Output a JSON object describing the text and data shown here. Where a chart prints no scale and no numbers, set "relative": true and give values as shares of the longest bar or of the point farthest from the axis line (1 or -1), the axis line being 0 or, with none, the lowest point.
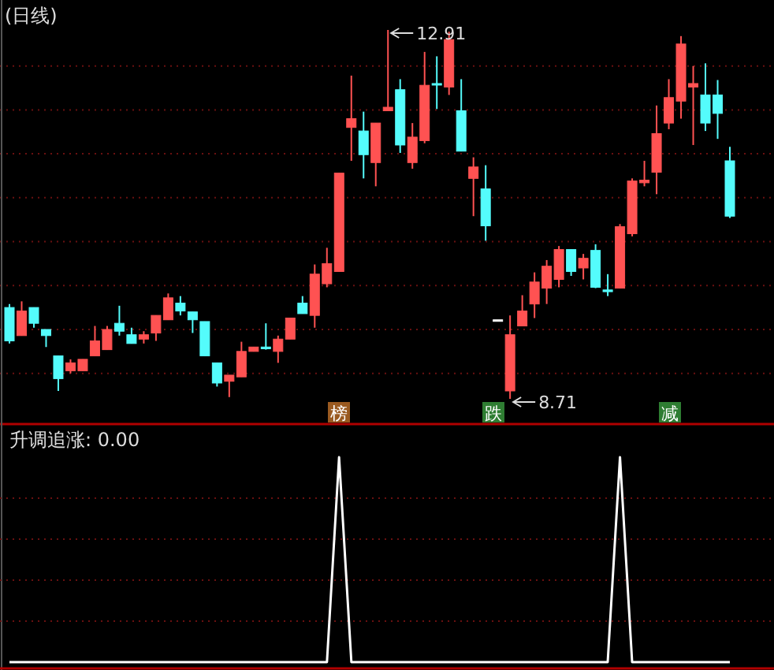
{
  "chart_data": [
    {
      "type": "candlestick",
      "title": "(日线)",
      "grid": true,
      "categories": [
        null,
        null,
        null,
        null,
        null,
        null,
        null,
        null,
        null,
        null,
        null,
        null,
        null,
        null,
        null,
        null,
        null,
        null,
        null,
        null,
        null,
        null,
        null,
        null,
        null,
        null,
        null,
        null,
        null,
        null,
        null,
        null,
        null,
        null,
        null,
        null,
        null,
        null,
        null,
        null,
        null,
        null,
        null,
        null,
        null,
        null,
        null,
        null,
        null,
        null,
        null,
        null,
        null,
        null,
        null,
        null,
        null,
        null,
        null,
        null
      ],
      "ohlc": [
        [
          9.75,
          9.79,
          9.34,
          9.37
        ],
        [
          9.43,
          9.82,
          9.43,
          9.71
        ],
        [
          9.75,
          9.75,
          9.52,
          9.57
        ],
        [
          9.5,
          9.5,
          9.3,
          9.43
        ],
        [
          9.2,
          9.2,
          8.8,
          8.94
        ],
        [
          9.03,
          9.16,
          9.0,
          9.12
        ],
        [
          9.03,
          9.16,
          9.03,
          9.16
        ],
        [
          9.2,
          9.54,
          9.2,
          9.37
        ],
        [
          9.27,
          9.54,
          9.27,
          9.5
        ],
        [
          9.57,
          9.77,
          9.43,
          9.48
        ],
        [
          9.44,
          9.52,
          9.34,
          9.34
        ],
        [
          9.39,
          9.48,
          9.34,
          9.44
        ],
        [
          9.46,
          9.66,
          9.37,
          9.66
        ],
        [
          9.61,
          9.91,
          9.61,
          9.86
        ],
        [
          9.8,
          9.88,
          9.66,
          9.71
        ],
        [
          9.7,
          9.7,
          9.46,
          9.61
        ],
        [
          9.59,
          9.59,
          9.2,
          9.2
        ],
        [
          9.12,
          9.12,
          8.85,
          8.89
        ],
        [
          8.91,
          8.98,
          8.73,
          8.98
        ],
        [
          8.96,
          9.36,
          8.96,
          9.25
        ],
        [
          9.25,
          9.3,
          9.25,
          9.3
        ],
        [
          9.3,
          9.57,
          9.27,
          9.28
        ],
        [
          9.25,
          9.43,
          9.12,
          9.39
        ],
        [
          9.39,
          9.63,
          9.39,
          9.63
        ],
        [
          9.8,
          9.88,
          9.68,
          9.68
        ],
        [
          9.66,
          10.24,
          9.52,
          10.13
        ],
        [
          10.02,
          10.43,
          9.98,
          10.25
        ],
        [
          10.16,
          11.28,
          10.16,
          11.28
        ],
        [
          11.8,
          12.39,
          11.42,
          11.9
        ],
        [
          11.76,
          11.98,
          11.22,
          11.49
        ],
        [
          11.4,
          11.85,
          11.13,
          11.85
        ],
        [
          11.99,
          12.91,
          11.99,
          12.03
        ],
        [
          12.23,
          12.35,
          11.51,
          11.6
        ],
        [
          11.4,
          11.85,
          11.33,
          11.69
        ],
        [
          11.65,
          12.66,
          11.62,
          12.28
        ],
        [
          12.3,
          12.61,
          12.01,
          12.3
        ],
        [
          12.26,
          12.89,
          12.17,
          12.8
        ],
        [
          11.99,
          12.35,
          11.53,
          11.53
        ],
        [
          11.22,
          11.46,
          10.79,
          11.35
        ],
        [
          11.1,
          11.37,
          10.51,
          10.68
        ],
        [
          9.61,
          9.61,
          9.61,
          9.61
        ],
        [
          8.8,
          9.66,
          8.71,
          9.44
        ],
        [
          9.54,
          9.89,
          9.54,
          9.71
        ],
        [
          9.79,
          10.15,
          9.63,
          10.04
        ],
        [
          9.97,
          10.29,
          9.79,
          10.22
        ],
        [
          10.07,
          10.45,
          9.98,
          10.41
        ],
        [
          10.41,
          10.41,
          10.11,
          10.16
        ],
        [
          10.2,
          10.36,
          10.07,
          10.31
        ],
        [
          10.4,
          10.47,
          9.97,
          9.98
        ],
        [
          9.95,
          10.13,
          9.88,
          9.93
        ],
        [
          9.97,
          10.7,
          9.97,
          10.67
        ],
        [
          10.59,
          11.22,
          10.56,
          11.19
        ],
        [
          11.17,
          11.42,
          11.13,
          11.2
        ],
        [
          11.29,
          12.05,
          11.04,
          11.73
        ],
        [
          11.85,
          12.35,
          11.78,
          12.14
        ],
        [
          12.1,
          12.84,
          11.9,
          12.75
        ],
        [
          12.26,
          12.5,
          11.6,
          12.3
        ],
        [
          12.17,
          12.53,
          11.76,
          11.85
        ],
        [
          12.17,
          12.34,
          11.67,
          11.96
        ],
        [
          11.42,
          11.58,
          10.77,
          10.79
        ]
      ],
      "colors": [
        "#54fcfc",
        "#ff5252",
        "#54fcfc",
        "#54fcfc",
        "#54fcfc",
        "#ff5252",
        "#ff5252",
        "#ff5252",
        "#ff5252",
        "#54fcfc",
        "#54fcfc",
        "#ff5252",
        "#ff5252",
        "#ff5252",
        "#54fcfc",
        "#54fcfc",
        "#54fcfc",
        "#54fcfc",
        "#ff5252",
        "#ff5252",
        "#ff5252",
        "#54fcfc",
        "#ff5252",
        "#ff5252",
        "#54fcfc",
        "#ff5252",
        "#ff5252",
        "#ff5252",
        "#ff5252",
        "#54fcfc",
        "#ff5252",
        "#ff5252",
        "#54fcfc",
        "#ff5252",
        "#ff5252",
        "#54fcfc",
        "#ff5252",
        "#54fcfc",
        "#ff5252",
        "#54fcfc",
        "#ffffff",
        "#ff5252",
        "#ff5252",
        "#ff5252",
        "#ff5252",
        "#ff5252",
        "#54fcfc",
        "#ff5252",
        "#54fcfc",
        "#54fcfc",
        "#ff5252",
        "#ff5252",
        "#ff5252",
        "#ff5252",
        "#ff5252",
        "#ff5252",
        "#ff5252",
        "#54fcfc",
        "#54fcfc",
        "#54fcfc"
      ],
      "yticks": [
        {
          "value": 9,
          "label": null
        },
        {
          "value": 9.5,
          "label": null
        },
        {
          "value": 10,
          "label": null
        },
        {
          "value": 10.5,
          "label": null
        },
        {
          "value": 11,
          "label": null
        },
        {
          "value": 11.5,
          "label": null
        },
        {
          "value": 12,
          "label": null
        },
        {
          "value": 12.5,
          "label": null
        }
      ],
      "annotations": [
        "12.91",
        "8.71",
        "榜",
        "跌",
        "减"
      ]
    },
    {
      "type": "line",
      "title": "升调追涨: 0.00",
      "relative": true,
      "color": "#ffffff",
      "ref_lines": [
        {
          "axis": "y",
          "value": 0.2,
          "color": "#6a1010",
          "line_style": "dotted"
        },
        {
          "axis": "y",
          "value": 0.4,
          "color": "#6a1010",
          "line_style": "dotted"
        },
        {
          "axis": "y",
          "value": 0.6,
          "color": "#6a1010",
          "line_style": "dotted"
        },
        {
          "axis": "y",
          "value": 0.8,
          "color": "#6a1010",
          "line_style": "dotted"
        }
      ],
      "categories": [
        null,
        null,
        null,
        null,
        null,
        null,
        null,
        null,
        null,
        null,
        null,
        null,
        null,
        null,
        null,
        null,
        null,
        null,
        null,
        null,
        null,
        null,
        null,
        null,
        null,
        null,
        null,
        null,
        null,
        null,
        null,
        null,
        null,
        null,
        null,
        null,
        null,
        null,
        null,
        null,
        null,
        null,
        null,
        null,
        null,
        null,
        null,
        null,
        null,
        null,
        null,
        null,
        null,
        null,
        null,
        null,
        null,
        null,
        null,
        null
      ],
      "values": [
        0,
        0,
        0,
        0,
        0,
        0,
        0,
        0,
        0,
        0,
        0,
        0,
        0,
        0,
        0,
        0,
        0,
        0,
        0,
        0,
        0,
        0,
        0,
        0,
        0,
        0,
        0,
        1,
        0,
        0,
        0,
        0,
        0,
        0,
        0,
        0,
        0,
        0,
        0,
        0,
        0,
        0,
        0,
        0,
        0,
        0,
        0,
        0,
        0,
        0,
        1,
        0,
        0,
        0,
        0,
        0,
        0,
        0,
        0,
        0
      ]
    }
  ]
}
